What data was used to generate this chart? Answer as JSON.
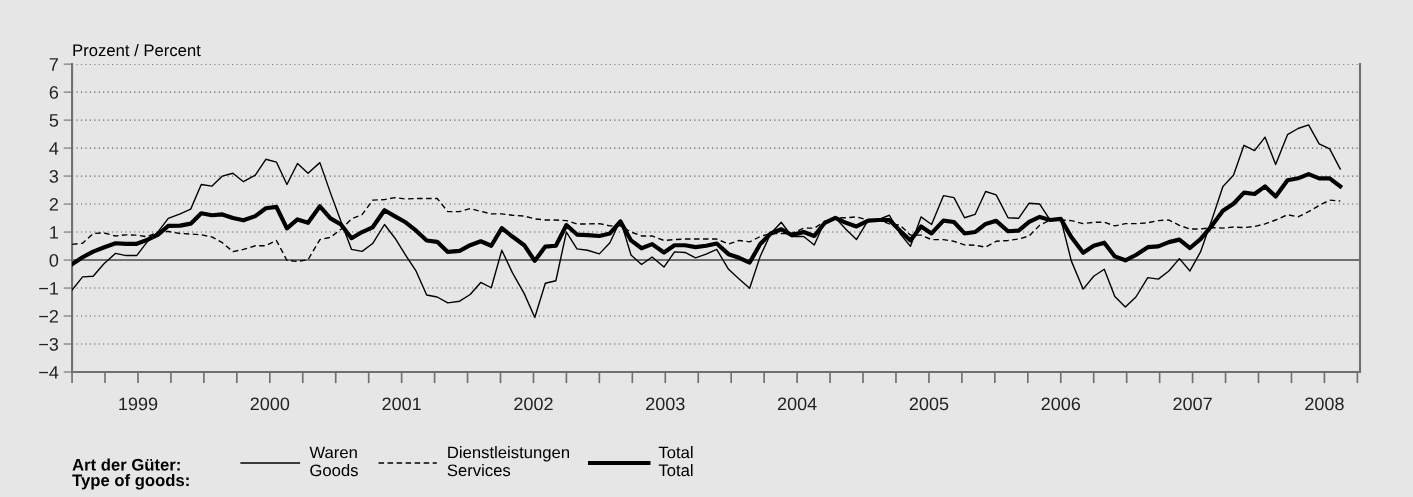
{
  "chart_data": {
    "type": "line",
    "ylabel": "Prozent / Percent",
    "legend_title": "Art der Güter:\nType of goods:",
    "x": [
      1999.0,
      1999.08,
      1999.16,
      1999.24,
      1999.33,
      1999.41,
      1999.49,
      1999.57,
      1999.65,
      1999.73,
      1999.82,
      1999.9,
      1999.98,
      2000.06,
      2000.14,
      2000.22,
      2000.3,
      2000.39,
      2000.47,
      2000.55,
      2000.63,
      2000.71,
      2000.79,
      2000.88,
      2000.96,
      2001.04,
      2001.12,
      2001.2,
      2001.28,
      2001.37,
      2001.45,
      2001.53,
      2001.61,
      2001.69,
      2001.77,
      2001.85,
      2001.94,
      2002.02,
      2002.1,
      2002.18,
      2002.26,
      2002.34,
      2002.43,
      2002.51,
      2002.59,
      2002.67,
      2002.75,
      2002.83,
      2002.91,
      2003.0,
      2003.08,
      2003.16,
      2003.24,
      2003.32,
      2003.4,
      2003.49,
      2003.57,
      2003.65,
      2003.73,
      2003.81,
      2003.89,
      2003.98,
      2004.06,
      2004.14,
      2004.22,
      2004.3,
      2004.38,
      2004.46,
      2004.55,
      2004.63,
      2004.71,
      2004.79,
      2004.87,
      2004.95,
      2005.04,
      2005.12,
      2005.2,
      2005.28,
      2005.36,
      2005.44,
      2005.52,
      2005.61,
      2005.69,
      2005.77,
      2005.85,
      2005.93,
      2006.01,
      2006.1,
      2006.18,
      2006.26,
      2006.34,
      2006.42,
      2006.5,
      2006.58,
      2006.67,
      2006.75,
      2006.83,
      2006.91,
      2006.99,
      2007.07,
      2007.16,
      2007.24,
      2007.32,
      2007.4,
      2007.48,
      2007.56,
      2007.65,
      2007.73,
      2007.81,
      2007.89,
      2007.97,
      2008.05,
      2008.13,
      2008.22,
      2008.3,
      2008.38,
      2008.46,
      2008.54,
      2008.62
    ],
    "series": [
      {
        "name": "Waren\nGoods",
        "color": "#000000",
        "line_style": "solid",
        "values": [
          -1.07,
          -0.6,
          -0.58,
          -0.14,
          0.24,
          0.16,
          0.16,
          0.65,
          1.0,
          1.49,
          1.65,
          1.82,
          2.7,
          2.64,
          3.0,
          3.1,
          2.8,
          3.03,
          3.6,
          3.5,
          2.7,
          3.45,
          3.1,
          3.48,
          2.4,
          1.38,
          0.38,
          0.31,
          0.59,
          1.27,
          0.78,
          0.18,
          -0.4,
          -1.25,
          -1.32,
          -1.53,
          -1.47,
          -1.23,
          -0.8,
          -0.99,
          0.35,
          -0.45,
          -1.2,
          -2.05,
          -0.83,
          -0.74,
          1.0,
          0.4,
          0.35,
          0.22,
          0.62,
          1.43,
          0.18,
          -0.16,
          0.11,
          -0.25,
          0.29,
          0.27,
          0.08,
          0.21,
          0.38,
          -0.33,
          -0.68,
          -1.01,
          0.13,
          0.95,
          1.35,
          0.84,
          0.84,
          0.54,
          1.38,
          1.51,
          1.1,
          0.73,
          1.43,
          1.45,
          1.6,
          0.95,
          0.49,
          1.54,
          1.27,
          2.3,
          2.23,
          1.51,
          1.63,
          2.45,
          2.33,
          1.51,
          1.49,
          2.03,
          2.0,
          1.43,
          1.47,
          -0.03,
          -1.04,
          -0.58,
          -0.33,
          -1.3,
          -1.68,
          -1.32,
          -0.63,
          -0.68,
          -0.39,
          0.05,
          -0.39,
          0.29,
          1.49,
          2.63,
          3.03,
          4.1,
          3.91,
          4.39,
          3.41,
          4.48,
          4.7,
          4.83,
          4.15,
          3.97,
          3.25
        ]
      },
      {
        "name": "Dienstleistungen\nServices",
        "color": "#000000",
        "line_style": "dashed",
        "values": [
          0.56,
          0.6,
          0.95,
          0.97,
          0.86,
          0.9,
          0.89,
          0.83,
          1.0,
          1.02,
          0.95,
          0.93,
          0.9,
          0.83,
          0.62,
          0.3,
          0.38,
          0.51,
          0.51,
          0.7,
          -0.01,
          -0.05,
          0.01,
          0.73,
          0.81,
          1.1,
          1.47,
          1.62,
          2.14,
          2.16,
          2.23,
          2.18,
          2.2,
          2.2,
          2.2,
          1.73,
          1.73,
          1.84,
          1.74,
          1.65,
          1.65,
          1.6,
          1.57,
          1.47,
          1.43,
          1.43,
          1.41,
          1.29,
          1.29,
          1.3,
          1.22,
          1.22,
          1.0,
          0.86,
          0.86,
          0.7,
          0.73,
          0.75,
          0.75,
          0.75,
          0.75,
          0.57,
          0.7,
          0.65,
          0.84,
          0.95,
          0.95,
          0.95,
          1.14,
          1.14,
          1.38,
          1.51,
          1.51,
          1.54,
          1.43,
          1.43,
          1.29,
          1.25,
          0.89,
          0.89,
          0.73,
          0.73,
          0.67,
          0.54,
          0.53,
          0.46,
          0.67,
          0.7,
          0.75,
          0.86,
          1.24,
          1.43,
          1.43,
          1.41,
          1.3,
          1.35,
          1.35,
          1.22,
          1.3,
          1.3,
          1.33,
          1.41,
          1.43,
          1.24,
          1.11,
          1.11,
          1.16,
          1.14,
          1.18,
          1.16,
          1.2,
          1.29,
          1.43,
          1.62,
          1.54,
          1.73,
          1.95,
          2.14,
          2.11
        ]
      },
      {
        "name": "Total\nTotal",
        "color": "#000000",
        "line_style": "solid",
        "values": [
          -0.15,
          0.1,
          0.3,
          0.45,
          0.6,
          0.58,
          0.58,
          0.72,
          0.9,
          1.22,
          1.23,
          1.3,
          1.67,
          1.6,
          1.63,
          1.5,
          1.42,
          1.57,
          1.85,
          1.9,
          1.13,
          1.45,
          1.33,
          1.92,
          1.49,
          1.27,
          0.78,
          1.0,
          1.17,
          1.78,
          1.56,
          1.35,
          1.05,
          0.7,
          0.65,
          0.29,
          0.33,
          0.53,
          0.67,
          0.51,
          1.14,
          0.84,
          0.53,
          -0.03,
          0.48,
          0.51,
          1.25,
          0.91,
          0.89,
          0.86,
          0.95,
          1.38,
          0.7,
          0.42,
          0.57,
          0.27,
          0.53,
          0.53,
          0.46,
          0.51,
          0.59,
          0.21,
          0.08,
          -0.09,
          0.57,
          0.95,
          1.1,
          0.89,
          1.0,
          0.86,
          1.33,
          1.51,
          1.33,
          1.2,
          1.41,
          1.43,
          1.43,
          1.05,
          0.7,
          1.2,
          0.95,
          1.41,
          1.36,
          0.95,
          1.0,
          1.29,
          1.4,
          1.03,
          1.05,
          1.36,
          1.54,
          1.43,
          1.47,
          0.82,
          0.26,
          0.51,
          0.62,
          0.13,
          -0.01,
          0.18,
          0.46,
          0.49,
          0.64,
          0.73,
          0.43,
          0.75,
          1.25,
          1.76,
          2.01,
          2.41,
          2.36,
          2.63,
          2.27,
          2.85,
          2.92,
          3.07,
          2.92,
          2.92,
          2.63
        ]
      }
    ],
    "xlim": [
      1999,
      2008.77
    ],
    "xticks": [
      {
        "value": 1999,
        "label": null
      },
      {
        "value": 1999.25,
        "label": null
      },
      {
        "value": 1999.5,
        "label": "1999"
      },
      {
        "value": 1999.75,
        "label": null
      },
      {
        "value": 2000,
        "label": null
      },
      {
        "value": 2000.25,
        "label": null
      },
      {
        "value": 2000.5,
        "label": "2000"
      },
      {
        "value": 2000.75,
        "label": null
      },
      {
        "value": 2001,
        "label": null
      },
      {
        "value": 2001.25,
        "label": null
      },
      {
        "value": 2001.5,
        "label": "2001"
      },
      {
        "value": 2001.75,
        "label": null
      },
      {
        "value": 2002,
        "label": null
      },
      {
        "value": 2002.25,
        "label": null
      },
      {
        "value": 2002.5,
        "label": "2002"
      },
      {
        "value": 2002.75,
        "label": null
      },
      {
        "value": 2003,
        "label": null
      },
      {
        "value": 2003.25,
        "label": null
      },
      {
        "value": 2003.5,
        "label": "2003"
      },
      {
        "value": 2003.75,
        "label": null
      },
      {
        "value": 2004,
        "label": null
      },
      {
        "value": 2004.25,
        "label": null
      },
      {
        "value": 2004.5,
        "label": "2004"
      },
      {
        "value": 2004.75,
        "label": null
      },
      {
        "value": 2005,
        "label": null
      },
      {
        "value": 2005.25,
        "label": null
      },
      {
        "value": 2005.5,
        "label": "2005"
      },
      {
        "value": 2005.75,
        "label": null
      },
      {
        "value": 2006,
        "label": null
      },
      {
        "value": 2006.25,
        "label": null
      },
      {
        "value": 2006.5,
        "label": "2006"
      },
      {
        "value": 2006.75,
        "label": null
      },
      {
        "value": 2007,
        "label": null
      },
      {
        "value": 2007.25,
        "label": null
      },
      {
        "value": 2007.5,
        "label": "2007"
      },
      {
        "value": 2007.75,
        "label": null
      },
      {
        "value": 2008,
        "label": null
      },
      {
        "value": 2008.25,
        "label": null
      },
      {
        "value": 2008.5,
        "label": "2008"
      },
      {
        "value": 2008.75,
        "label": null
      }
    ],
    "ylim": [
      -4,
      7
    ],
    "yticks": [
      {
        "value": -4,
        "label": "−4"
      },
      {
        "value": -3,
        "label": "−3"
      },
      {
        "value": -2,
        "label": "−2"
      },
      {
        "value": -1,
        "label": "−1"
      },
      0,
      1,
      2,
      3,
      4,
      5,
      6,
      7
    ],
    "ref_lines": [
      {
        "axis": "y",
        "value": 0,
        "label": null,
        "color": "#707070",
        "line_style": "solid"
      }
    ],
    "grid": "y",
    "legend": "bottom"
  }
}
